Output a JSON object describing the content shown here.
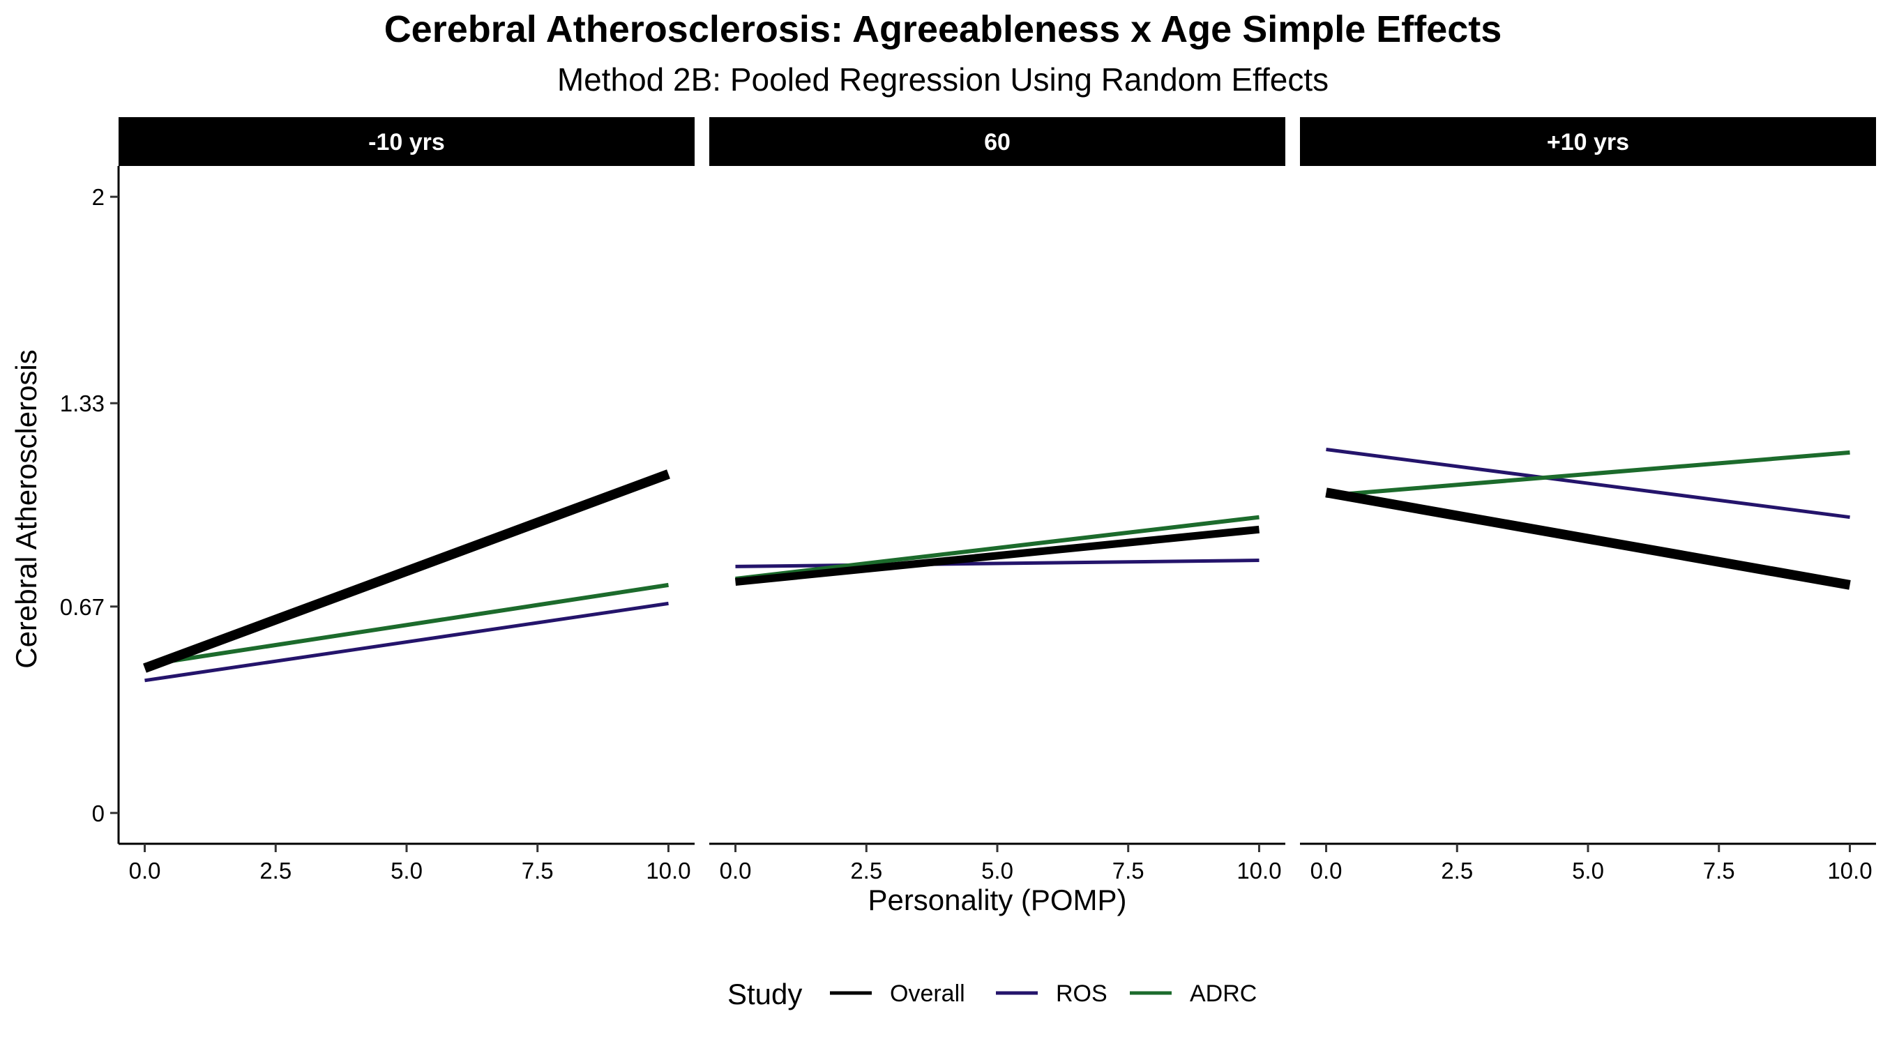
{
  "chart_data": {
    "type": "line",
    "title": "Cerebral Atherosclerosis: Agreeableness x Age Simple Effects",
    "subtitle": "Method 2B: Pooled Regression Using Random Effects",
    "xlabel": "Personality (POMP)",
    "ylabel": "Cerebral Atherosclerosis",
    "xlim": [
      -0.5,
      10.5
    ],
    "ylim": [
      -0.1,
      2.1
    ],
    "x_ticks": [
      0,
      2.5,
      5,
      7.5,
      10
    ],
    "x_tick_labels": [
      "0.0",
      "2.5",
      "5.0",
      "7.5",
      "10.0"
    ],
    "y_ticks": [
      0,
      0.67,
      1.33,
      2
    ],
    "y_tick_labels": [
      "0",
      "0.67",
      "1.33",
      "2"
    ],
    "legend": {
      "title": "Study",
      "position": "bottom",
      "entries": [
        {
          "label": "Overall",
          "color": "#000000"
        },
        {
          "label": "ROS",
          "color": "#24146b"
        },
        {
          "label": "ADRC",
          "color": "#1c6b2c"
        }
      ]
    },
    "panels": [
      {
        "label": "-10 yrs",
        "series": [
          {
            "name": "Overall",
            "color": "#000000",
            "width": 14,
            "x": [
              0,
              10
            ],
            "y": [
              0.47,
              1.1
            ]
          },
          {
            "name": "ROS",
            "color": "#24146b",
            "width": 5,
            "x": [
              0,
              10
            ],
            "y": [
              0.43,
              0.68
            ]
          },
          {
            "name": "ADRC",
            "color": "#1c6b2c",
            "width": 6,
            "x": [
              0,
              10
            ],
            "y": [
              0.48,
              0.74
            ]
          }
        ]
      },
      {
        "label": "60",
        "series": [
          {
            "name": "Overall",
            "color": "#000000",
            "width": 11,
            "x": [
              0,
              10
            ],
            "y": [
              0.75,
              0.92
            ]
          },
          {
            "name": "ROS",
            "color": "#24146b",
            "width": 5,
            "x": [
              0,
              10
            ],
            "y": [
              0.8,
              0.82
            ]
          },
          {
            "name": "ADRC",
            "color": "#1c6b2c",
            "width": 6,
            "x": [
              0,
              10
            ],
            "y": [
              0.76,
              0.96
            ]
          }
        ]
      },
      {
        "label": "+10 yrs",
        "series": [
          {
            "name": "Overall",
            "color": "#000000",
            "width": 14,
            "x": [
              0,
              10
            ],
            "y": [
              1.04,
              0.74
            ]
          },
          {
            "name": "ROS",
            "color": "#24146b",
            "width": 5,
            "x": [
              0,
              10
            ],
            "y": [
              1.18,
              0.96
            ]
          },
          {
            "name": "ADRC",
            "color": "#1c6b2c",
            "width": 6,
            "x": [
              0,
              10
            ],
            "y": [
              1.03,
              1.17
            ]
          }
        ]
      }
    ],
    "grid": false
  }
}
